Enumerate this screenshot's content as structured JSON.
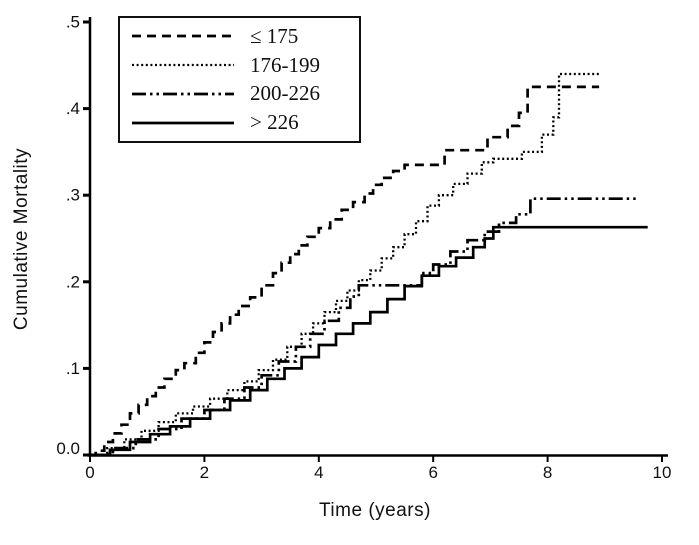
{
  "figure": {
    "background": "#ffffff",
    "axis_color": "#000000",
    "line_color": "#000000"
  },
  "chart_data": {
    "type": "line",
    "subtype": "step-survival-curve",
    "title": "",
    "xlabel": "Time (years)",
    "ylabel": "Cumulative Mortality",
    "xlim": [
      0,
      10
    ],
    "ylim": [
      0,
      0.5
    ],
    "grid": false,
    "legend_position": "upper-left-inside",
    "x_tick_values": [
      0,
      2,
      4,
      6,
      8,
      10
    ],
    "x_tick_labels": [
      "0",
      "2",
      "4",
      "6",
      "8",
      "10"
    ],
    "y_tick_values": [
      0,
      0.1,
      0.2,
      0.3,
      0.4,
      0.5
    ],
    "y_tick_labels": [
      "0.0",
      ".1",
      ".2",
      ".3",
      ".4",
      ".5"
    ],
    "series": [
      {
        "name": "le-175",
        "label": "≤ 175",
        "style": "dashed",
        "dash": "9 6",
        "stroke_width": 2.7,
        "points": [
          [
            0,
            0
          ],
          [
            0.1,
            0.005
          ],
          [
            0.25,
            0.015
          ],
          [
            0.4,
            0.025
          ],
          [
            0.55,
            0.035
          ],
          [
            0.7,
            0.048
          ],
          [
            0.85,
            0.058
          ],
          [
            1.0,
            0.068
          ],
          [
            1.15,
            0.078
          ],
          [
            1.3,
            0.088
          ],
          [
            1.5,
            0.098
          ],
          [
            1.65,
            0.106
          ],
          [
            1.85,
            0.118
          ],
          [
            2.0,
            0.13
          ],
          [
            2.15,
            0.142
          ],
          [
            2.3,
            0.152
          ],
          [
            2.45,
            0.162
          ],
          [
            2.6,
            0.172
          ],
          [
            2.8,
            0.182
          ],
          [
            3.0,
            0.196
          ],
          [
            3.2,
            0.21
          ],
          [
            3.35,
            0.222
          ],
          [
            3.5,
            0.232
          ],
          [
            3.65,
            0.242
          ],
          [
            3.8,
            0.252
          ],
          [
            4.0,
            0.262
          ],
          [
            4.2,
            0.272
          ],
          [
            4.4,
            0.283
          ],
          [
            4.6,
            0.292
          ],
          [
            4.8,
            0.302
          ],
          [
            4.95,
            0.312
          ],
          [
            5.1,
            0.32
          ],
          [
            5.3,
            0.328
          ],
          [
            5.5,
            0.335
          ],
          [
            6.2,
            0.352
          ],
          [
            6.95,
            0.367
          ],
          [
            7.3,
            0.38
          ],
          [
            7.5,
            0.395
          ],
          [
            7.65,
            0.425
          ],
          [
            8.9,
            0.425
          ]
        ]
      },
      {
        "name": "176-199",
        "label": "176-199",
        "style": "dotted",
        "dash": "2 2.6",
        "stroke_width": 2.3,
        "points": [
          [
            0,
            0
          ],
          [
            0.3,
            0.008
          ],
          [
            0.6,
            0.018
          ],
          [
            0.9,
            0.028
          ],
          [
            1.2,
            0.038
          ],
          [
            1.5,
            0.048
          ],
          [
            1.8,
            0.056
          ],
          [
            2.1,
            0.065
          ],
          [
            2.4,
            0.075
          ],
          [
            2.7,
            0.085
          ],
          [
            2.95,
            0.098
          ],
          [
            3.2,
            0.11
          ],
          [
            3.45,
            0.125
          ],
          [
            3.7,
            0.14
          ],
          [
            3.9,
            0.152
          ],
          [
            4.1,
            0.165
          ],
          [
            4.3,
            0.178
          ],
          [
            4.5,
            0.19
          ],
          [
            4.7,
            0.202
          ],
          [
            4.9,
            0.213
          ],
          [
            5.1,
            0.227
          ],
          [
            5.3,
            0.24
          ],
          [
            5.5,
            0.255
          ],
          [
            5.7,
            0.27
          ],
          [
            5.9,
            0.288
          ],
          [
            6.1,
            0.3
          ],
          [
            6.35,
            0.313
          ],
          [
            6.6,
            0.325
          ],
          [
            6.85,
            0.338
          ],
          [
            7.05,
            0.342
          ],
          [
            7.55,
            0.35
          ],
          [
            7.9,
            0.37
          ],
          [
            8.1,
            0.39
          ],
          [
            8.2,
            0.44
          ],
          [
            8.9,
            0.44
          ]
        ]
      },
      {
        "name": "200-226",
        "label": "200-226",
        "style": "dash-dot-dot",
        "dash": "14 4 2.5 4 2.5 4",
        "stroke_width": 2.7,
        "points": [
          [
            0,
            0
          ],
          [
            0.4,
            0.008
          ],
          [
            0.8,
            0.018
          ],
          [
            1.2,
            0.03
          ],
          [
            1.6,
            0.042
          ],
          [
            2.0,
            0.052
          ],
          [
            2.35,
            0.065
          ],
          [
            2.7,
            0.078
          ],
          [
            3.0,
            0.092
          ],
          [
            3.3,
            0.108
          ],
          [
            3.6,
            0.125
          ],
          [
            3.85,
            0.14
          ],
          [
            4.1,
            0.155
          ],
          [
            4.35,
            0.17
          ],
          [
            4.55,
            0.183
          ],
          [
            4.7,
            0.196
          ],
          [
            5.6,
            0.196
          ],
          [
            5.8,
            0.21
          ],
          [
            6.0,
            0.22
          ],
          [
            6.3,
            0.235
          ],
          [
            6.6,
            0.248
          ],
          [
            6.9,
            0.258
          ],
          [
            7.15,
            0.268
          ],
          [
            7.45,
            0.278
          ],
          [
            7.7,
            0.296
          ],
          [
            9.55,
            0.296
          ]
        ]
      },
      {
        "name": "gt-226",
        "label": "> 226",
        "style": "solid",
        "dash": "none",
        "stroke_width": 2.7,
        "points": [
          [
            0,
            0
          ],
          [
            0.35,
            0.006
          ],
          [
            0.7,
            0.015
          ],
          [
            1.05,
            0.024
          ],
          [
            1.4,
            0.033
          ],
          [
            1.75,
            0.042
          ],
          [
            2.1,
            0.052
          ],
          [
            2.45,
            0.063
          ],
          [
            2.8,
            0.075
          ],
          [
            3.1,
            0.088
          ],
          [
            3.4,
            0.1
          ],
          [
            3.7,
            0.113
          ],
          [
            4.0,
            0.127
          ],
          [
            4.3,
            0.14
          ],
          [
            4.6,
            0.152
          ],
          [
            4.9,
            0.165
          ],
          [
            5.2,
            0.18
          ],
          [
            5.5,
            0.195
          ],
          [
            5.8,
            0.207
          ],
          [
            6.1,
            0.218
          ],
          [
            6.4,
            0.228
          ],
          [
            6.7,
            0.24
          ],
          [
            6.9,
            0.25
          ],
          [
            7.05,
            0.263
          ],
          [
            9.75,
            0.263
          ]
        ]
      }
    ]
  }
}
